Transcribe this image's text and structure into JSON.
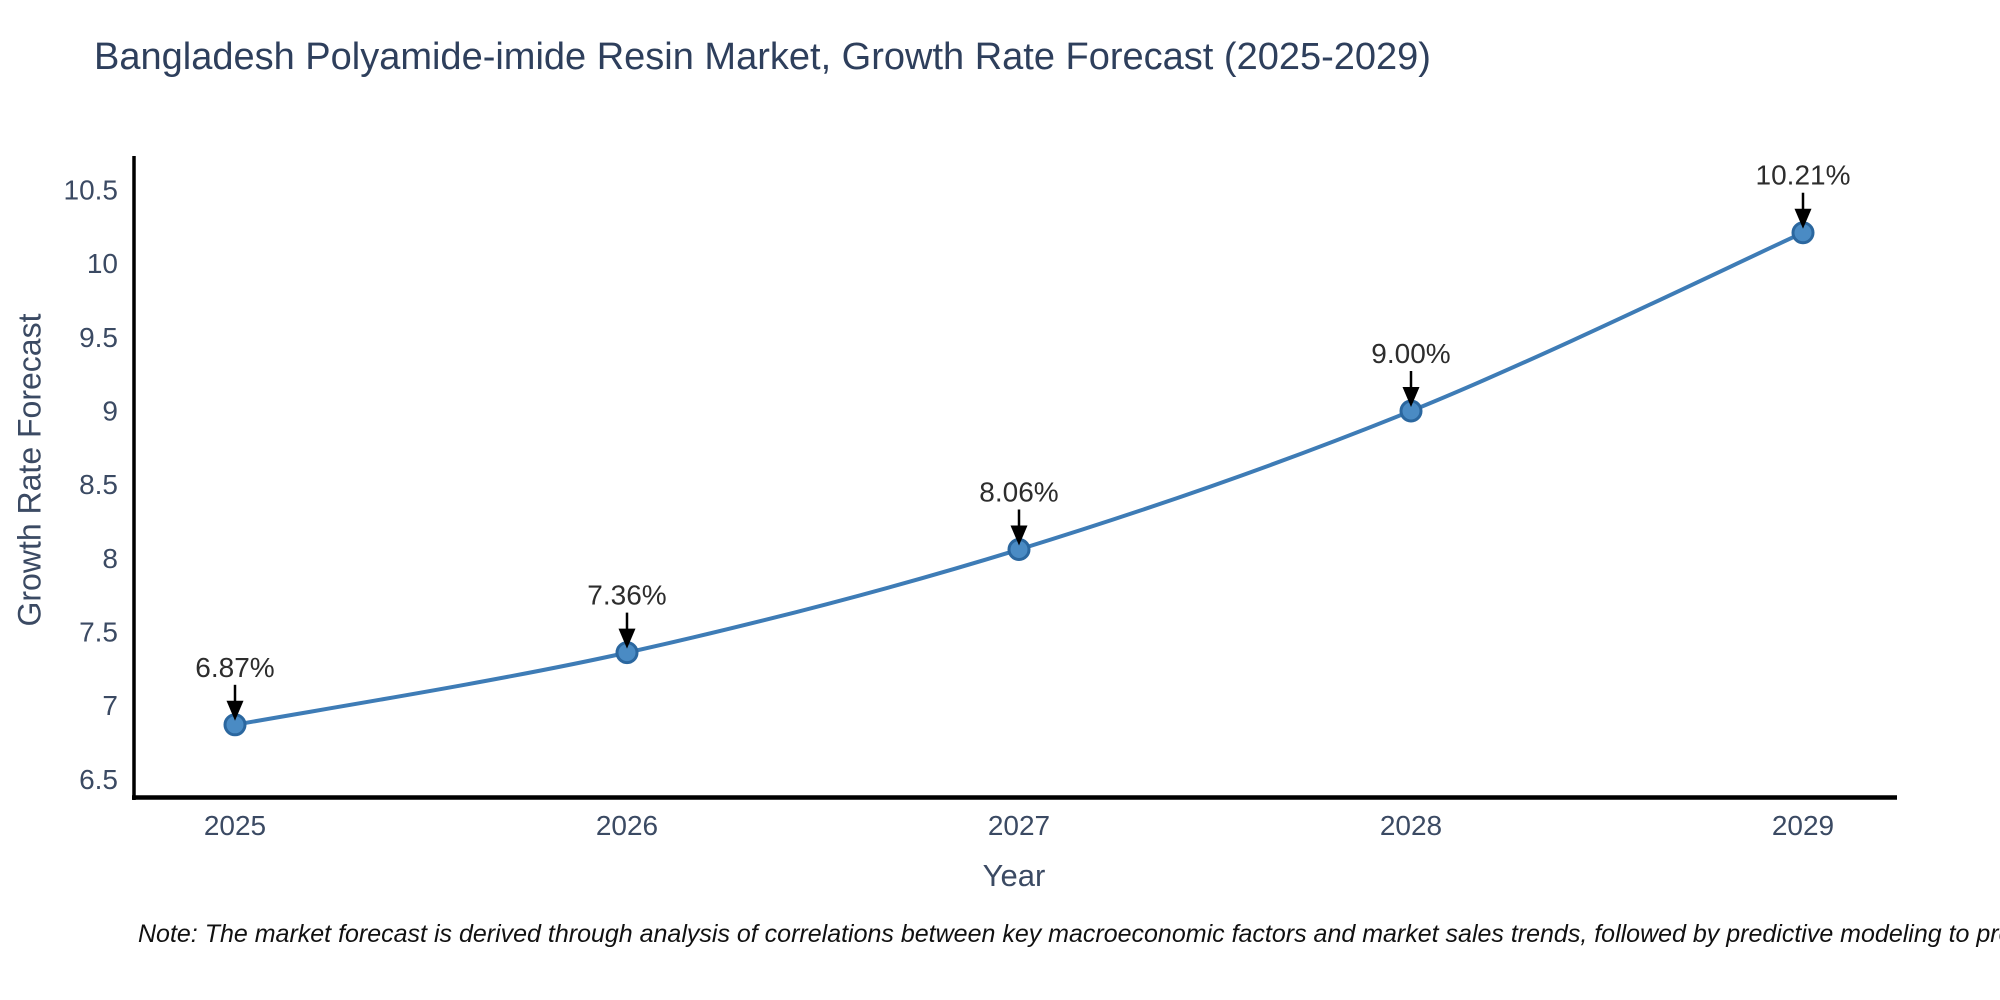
{
  "title": "Bangladesh Polyamide-imide Resin Market, Growth Rate Forecast (2025-2029)",
  "note": "Note: The market forecast is derived through analysis of correlations between key macroeconomic factors and market sales trends, followed by predictive modeling to project future sal",
  "chart_data": {
    "type": "line",
    "title": "Bangladesh Polyamide-imide Resin Market, Growth Rate Forecast (2025-2029)",
    "xlabel": "Year",
    "ylabel": "Growth Rate Forecast",
    "categories": [
      "2025",
      "2026",
      "2027",
      "2028",
      "2029"
    ],
    "values": [
      6.87,
      7.36,
      8.06,
      9.0,
      10.21
    ],
    "point_labels": [
      "6.87%",
      "7.36%",
      "8.06%",
      "9.00%",
      "10.21%"
    ],
    "y_tick_values": [
      6.5,
      7,
      7.5,
      8,
      8.5,
      9,
      9.5,
      10,
      10.5
    ],
    "y_tick_labels": [
      "6.5",
      "7",
      "7.5",
      "8",
      "8.5",
      "9",
      "9.5",
      "10",
      "10.5"
    ],
    "ylim": [
      6.4,
      10.7
    ],
    "grid": false,
    "legend": null,
    "marker": "circle",
    "annotation_arrows": true,
    "colors": {
      "line": "#3e7cb6",
      "marker_fill": "#4a8bc4",
      "marker_edge": "#2b679f",
      "annotation_text": "#2d2d2d",
      "arrow": "#000000",
      "axis_spine": "#000000",
      "tick_text": "#3b4a63",
      "title_text": "#2e3f5c"
    }
  }
}
